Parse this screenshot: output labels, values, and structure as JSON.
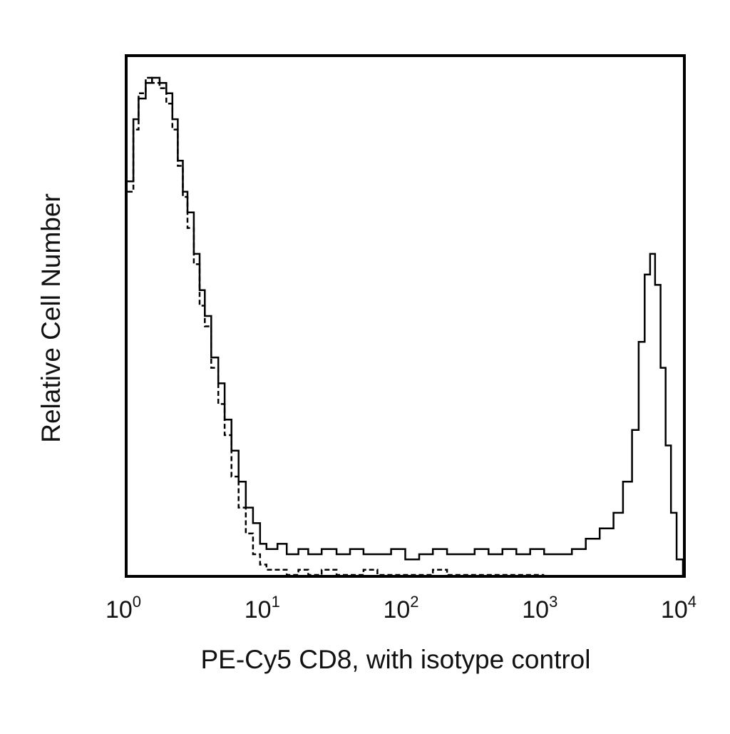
{
  "chart_data": {
    "type": "line",
    "xlabel": "PE-Cy5 CD8, with isotype control",
    "ylabel": "Relative Cell Number",
    "x_scale": "log",
    "xlim": [
      1,
      10000
    ],
    "ylim": [
      0,
      100
    ],
    "grid": false,
    "x_ticks": [
      {
        "base": "10",
        "exp": "0",
        "value": 1
      },
      {
        "base": "10",
        "exp": "1",
        "value": 10
      },
      {
        "base": "10",
        "exp": "2",
        "value": 100
      },
      {
        "base": "10",
        "exp": "3",
        "value": 1000
      },
      {
        "base": "10",
        "exp": "4",
        "value": 10000
      }
    ],
    "series": [
      {
        "line_style": "solid",
        "color": "#000000",
        "x": [
          1.0,
          1.1,
          1.2,
          1.35,
          1.5,
          1.7,
          1.9,
          2.1,
          2.3,
          2.5,
          2.7,
          3.0,
          3.3,
          3.6,
          4.0,
          4.5,
          5.0,
          5.6,
          6.3,
          7.1,
          8.0,
          9.0,
          10,
          12,
          14,
          17,
          20,
          25,
          32,
          40,
          50,
          63,
          79,
          100,
          126,
          158,
          200,
          251,
          316,
          398,
          501,
          631,
          794,
          1000,
          1259,
          1585,
          1995,
          2512,
          3162,
          3700,
          4300,
          4800,
          5300,
          5800,
          6300,
          6900,
          7500,
          8200,
          9000,
          10000
        ],
        "y": [
          76,
          88,
          92,
          95,
          96,
          95,
          93,
          88,
          80,
          74,
          70,
          62,
          55,
          50,
          42,
          37,
          30,
          24,
          18,
          13,
          10,
          6,
          5,
          6,
          4,
          5,
          4,
          5,
          4,
          5,
          4,
          4,
          5,
          3,
          4,
          5,
          4,
          4,
          5,
          4,
          5,
          4,
          5,
          4,
          4,
          5,
          7,
          9,
          12,
          18,
          28,
          45,
          58,
          62,
          56,
          40,
          25,
          12,
          3,
          0
        ]
      },
      {
        "line_style": "dashed",
        "color": "#000000",
        "x": [
          1.0,
          1.1,
          1.2,
          1.35,
          1.5,
          1.7,
          1.9,
          2.1,
          2.3,
          2.5,
          2.7,
          3.0,
          3.3,
          3.6,
          4.0,
          4.5,
          5.0,
          5.6,
          6.3,
          7.1,
          8.0,
          9.0,
          10,
          12,
          14,
          17,
          20,
          25,
          32,
          40,
          50,
          63,
          79,
          100,
          126,
          158,
          200,
          251,
          316,
          398,
          501,
          631,
          794,
          1000
        ],
        "y": [
          74,
          86,
          93,
          96,
          95,
          94,
          91,
          86,
          79,
          73,
          67,
          60,
          52,
          48,
          40,
          33,
          27,
          19,
          13,
          8,
          4,
          2,
          1,
          1,
          0,
          1,
          0,
          1,
          0,
          0,
          1,
          0,
          0,
          0,
          0,
          1,
          0,
          0,
          0,
          0,
          0,
          0,
          0,
          0
        ]
      }
    ]
  }
}
